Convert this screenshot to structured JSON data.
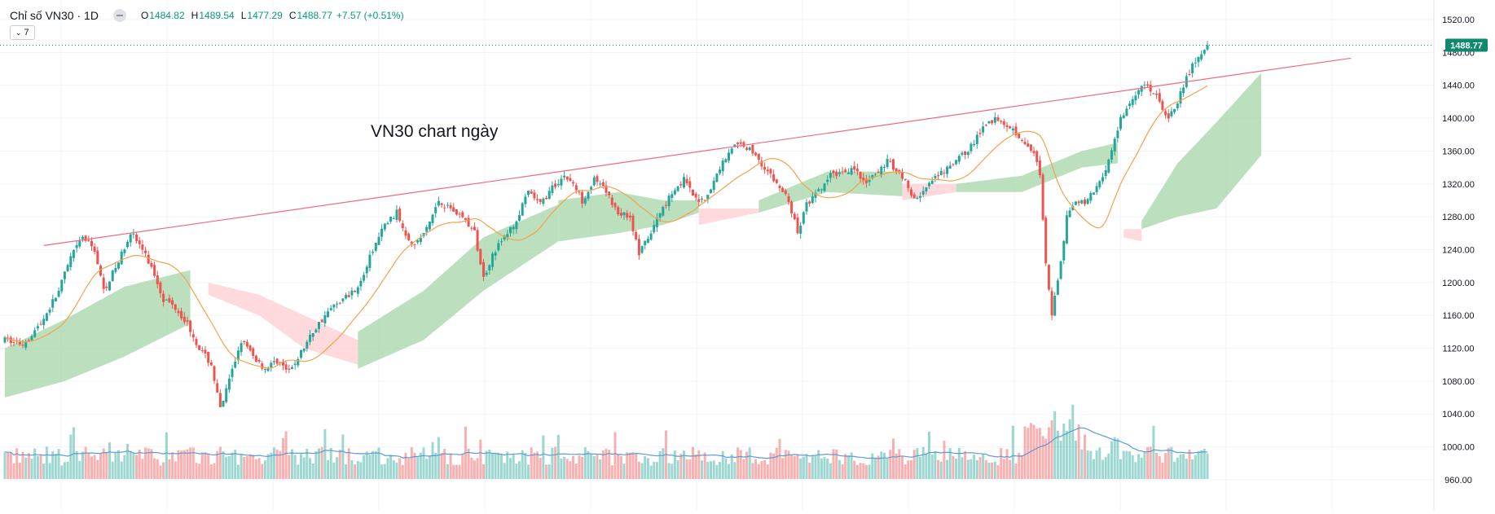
{
  "legend": {
    "title": "Chỉ số VN30 · 1D",
    "open_label": "O",
    "open": "1484.82",
    "high_label": "H",
    "high": "1489.54",
    "low_label": "L",
    "low": "1477.29",
    "close_label": "C",
    "close": "1488.77",
    "change": "+7.57 (+0.51%)",
    "indicators_toggle": "7",
    "eye_icon": "eye-hidden-icon"
  },
  "colors": {
    "up": "#26a69a",
    "down": "#ef5350",
    "ma": "#f5a14a",
    "trendline": "#ef6b7a",
    "volume_ma": "#5b9bd5",
    "cloud_bull": "#a5d6a7",
    "cloud_bear": "#ffcdd2",
    "last_price": "#0d8a6e"
  },
  "chart_data": {
    "type": "candlestick",
    "title": "VN30 chart ngày",
    "symbol": "Chỉ số VN30",
    "interval": "1D",
    "ylim": [
      940,
      1530
    ],
    "y_ticks": [
      "1520.00",
      "1480.00",
      "1440.00",
      "1400.00",
      "1360.00",
      "1320.00",
      "1280.00",
      "1240.00",
      "1200.00",
      "1160.00",
      "1120.00",
      "1080.00",
      "1040.00",
      "1000.00",
      "960.00"
    ],
    "last_price": 1488.77,
    "last_price_label": "1488.77",
    "x_range": [
      0,
      300
    ],
    "price_path": [
      [
        0,
        1130
      ],
      [
        6,
        1125
      ],
      [
        12,
        1150
      ],
      [
        18,
        1190
      ],
      [
        22,
        1230
      ],
      [
        26,
        1255
      ],
      [
        30,
        1240
      ],
      [
        33,
        1190
      ],
      [
        38,
        1225
      ],
      [
        42,
        1262
      ],
      [
        46,
        1240
      ],
      [
        50,
        1210
      ],
      [
        53,
        1180
      ],
      [
        57,
        1170
      ],
      [
        61,
        1150
      ],
      [
        65,
        1120
      ],
      [
        69,
        1100
      ],
      [
        72,
        1045
      ],
      [
        75,
        1080
      ],
      [
        79,
        1130
      ],
      [
        83,
        1110
      ],
      [
        87,
        1095
      ],
      [
        91,
        1105
      ],
      [
        95,
        1090
      ],
      [
        99,
        1115
      ],
      [
        103,
        1140
      ],
      [
        107,
        1160
      ],
      [
        111,
        1175
      ],
      [
        115,
        1185
      ],
      [
        119,
        1200
      ],
      [
        123,
        1240
      ],
      [
        127,
        1270
      ],
      [
        131,
        1285
      ],
      [
        134,
        1260
      ],
      [
        137,
        1245
      ],
      [
        141,
        1265
      ],
      [
        145,
        1300
      ],
      [
        149,
        1290
      ],
      [
        153,
        1280
      ],
      [
        157,
        1260
      ],
      [
        160,
        1205
      ],
      [
        163,
        1235
      ],
      [
        167,
        1255
      ],
      [
        171,
        1275
      ],
      [
        175,
        1310
      ],
      [
        179,
        1295
      ],
      [
        183,
        1315
      ],
      [
        187,
        1330
      ],
      [
        190,
        1320
      ],
      [
        193,
        1300
      ],
      [
        197,
        1325
      ],
      [
        201,
        1310
      ],
      [
        205,
        1285
      ],
      [
        209,
        1280
      ],
      [
        212,
        1235
      ],
      [
        216,
        1260
      ],
      [
        219,
        1285
      ],
      [
        223,
        1310
      ],
      [
        227,
        1325
      ],
      [
        231,
        1300
      ],
      [
        235,
        1305
      ],
      [
        239,
        1340
      ],
      [
        243,
        1365
      ],
      [
        247,
        1368
      ],
      [
        251,
        1355
      ],
      [
        255,
        1335
      ],
      [
        258,
        1320
      ],
      [
        262,
        1300
      ],
      [
        265,
        1260
      ],
      [
        268,
        1295
      ],
      [
        272,
        1310
      ],
      [
        276,
        1330
      ],
      [
        280,
        1335
      ],
      [
        284,
        1340
      ],
      [
        287,
        1320
      ],
      [
        291,
        1330
      ],
      [
        295,
        1348
      ],
      [
        300,
        1330
      ]
    ],
    "price_path_note": "x in session index 0-300 for the first 300 sessions (~Aug 2024 onward); remaining sessions in price_path_tail",
    "price_path_tail": [
      [
        300,
        1330
      ],
      [
        304,
        1300
      ],
      [
        308,
        1315
      ],
      [
        312,
        1330
      ],
      [
        316,
        1340
      ],
      [
        320,
        1355
      ],
      [
        324,
        1370
      ],
      [
        328,
        1395
      ],
      [
        332,
        1400
      ],
      [
        336,
        1390
      ],
      [
        340,
        1375
      ],
      [
        344,
        1360
      ],
      [
        346,
        1330
      ],
      [
        348,
        1220
      ],
      [
        350,
        1160
      ],
      [
        352,
        1200
      ],
      [
        355,
        1280
      ],
      [
        358,
        1300
      ],
      [
        361,
        1295
      ],
      [
        364,
        1310
      ],
      [
        367,
        1330
      ],
      [
        370,
        1360
      ],
      [
        373,
        1400
      ],
      [
        376,
        1420
      ],
      [
        379,
        1435
      ],
      [
        382,
        1440
      ],
      [
        385,
        1425
      ],
      [
        388,
        1400
      ],
      [
        391,
        1410
      ],
      [
        394,
        1440
      ],
      [
        397,
        1465
      ],
      [
        400,
        1475
      ],
      [
        402,
        1488.77
      ]
    ],
    "cloud_segments": [
      {
        "kind": "bull",
        "from": 0,
        "to": 62,
        "top": [
          [
            0,
            1120
          ],
          [
            20,
            1155
          ],
          [
            40,
            1195
          ],
          [
            62,
            1215
          ]
        ],
        "bottom": [
          [
            0,
            1060
          ],
          [
            20,
            1080
          ],
          [
            40,
            1110
          ],
          [
            62,
            1150
          ]
        ]
      },
      {
        "kind": "bear",
        "from": 68,
        "to": 118,
        "top": [
          [
            68,
            1200
          ],
          [
            85,
            1185
          ],
          [
            100,
            1160
          ],
          [
            118,
            1130
          ]
        ],
        "bottom": [
          [
            68,
            1185
          ],
          [
            85,
            1160
          ],
          [
            100,
            1120
          ],
          [
            118,
            1100
          ]
        ]
      },
      {
        "kind": "bull",
        "from": 118,
        "to": 185,
        "top": [
          [
            118,
            1140
          ],
          [
            140,
            1190
          ],
          [
            160,
            1255
          ],
          [
            185,
            1295
          ]
        ],
        "bottom": [
          [
            118,
            1095
          ],
          [
            140,
            1130
          ],
          [
            160,
            1190
          ],
          [
            185,
            1250
          ]
        ]
      },
      {
        "kind": "bull",
        "from": 185,
        "to": 232,
        "top": [
          [
            185,
            1300
          ],
          [
            205,
            1310
          ],
          [
            220,
            1300
          ],
          [
            232,
            1300
          ]
        ],
        "bottom": [
          [
            185,
            1250
          ],
          [
            205,
            1260
          ],
          [
            220,
            1270
          ],
          [
            232,
            1285
          ]
        ]
      },
      {
        "kind": "bear",
        "from": 232,
        "to": 252,
        "top": [
          [
            232,
            1290
          ],
          [
            252,
            1290
          ]
        ],
        "bottom": [
          [
            232,
            1270
          ],
          [
            252,
            1285
          ]
        ]
      },
      {
        "kind": "bull",
        "from": 252,
        "to": 300,
        "top": [
          [
            252,
            1300
          ],
          [
            275,
            1335
          ],
          [
            300,
            1335
          ]
        ],
        "bottom": [
          [
            252,
            1285
          ],
          [
            275,
            1310
          ],
          [
            300,
            1305
          ]
        ]
      },
      {
        "kind": "bear",
        "from": 300,
        "to": 318,
        "top": [
          [
            300,
            1320
          ],
          [
            318,
            1320
          ]
        ],
        "bottom": [
          [
            300,
            1300
          ],
          [
            318,
            1310
          ]
        ]
      },
      {
        "kind": "bull",
        "from": 318,
        "to": 372,
        "top": [
          [
            318,
            1320
          ],
          [
            340,
            1330
          ],
          [
            360,
            1360
          ],
          [
            372,
            1370
          ]
        ],
        "bottom": [
          [
            318,
            1310
          ],
          [
            340,
            1310
          ],
          [
            360,
            1340
          ],
          [
            372,
            1345
          ]
        ]
      },
      {
        "kind": "bear",
        "from": 374,
        "to": 380,
        "top": [
          [
            374,
            1265
          ],
          [
            380,
            1265
          ]
        ],
        "bottom": [
          [
            374,
            1255
          ],
          [
            380,
            1250
          ]
        ]
      },
      {
        "kind": "bull",
        "from": 380,
        "to": 420,
        "top": [
          [
            380,
            1275
          ],
          [
            392,
            1345
          ],
          [
            405,
            1395
          ],
          [
            420,
            1455
          ]
        ],
        "bottom": [
          [
            380,
            1265
          ],
          [
            392,
            1280
          ],
          [
            405,
            1290
          ],
          [
            420,
            1355
          ]
        ]
      }
    ],
    "trendline": {
      "start": [
        13,
        1245
      ],
      "end": [
        450,
        1473
      ]
    },
    "annotation": "VN30 chart ngày",
    "volume_panel": {
      "ylim": [
        0,
        1
      ],
      "ma_shown": true
    }
  }
}
